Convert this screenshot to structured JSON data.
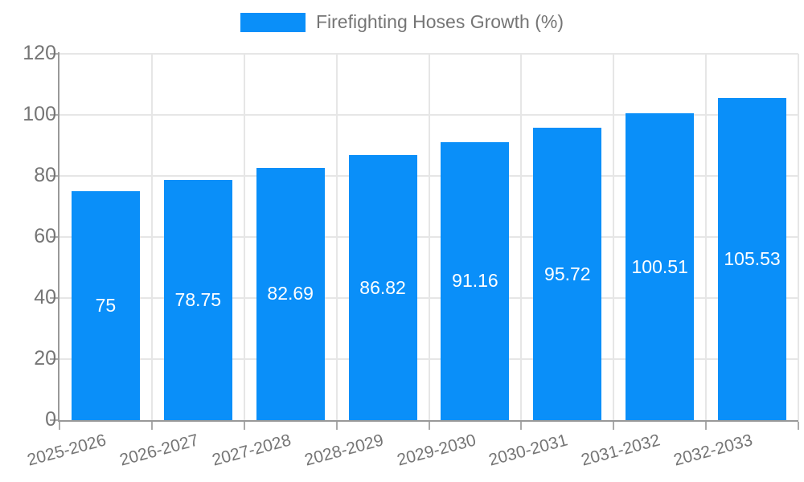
{
  "chart_data": {
    "type": "bar",
    "title": "",
    "legend_position": "top",
    "grid": true,
    "categories": [
      "2025-2026",
      "2026-2027",
      "2027-2028",
      "2028-2029",
      "2029-2030",
      "2030-2031",
      "2031-2032",
      "2032-2033"
    ],
    "series": [
      {
        "name": "Firefighting Hoses Growth (%)",
        "values": [
          75,
          78.75,
          82.69,
          86.82,
          91.16,
          95.72,
          100.51,
          105.53
        ]
      }
    ],
    "value_labels": [
      "75",
      "78.75",
      "82.69",
      "86.82",
      "91.16",
      "95.72",
      "100.51",
      "105.53"
    ],
    "xlabel": "",
    "ylabel": "",
    "ylim": [
      0,
      120
    ],
    "yticks": [
      0,
      20,
      40,
      60,
      80,
      100,
      120
    ]
  },
  "colors": {
    "bar": "#0A8FF9",
    "grid": "#e6e6e6",
    "axis": "#999999",
    "tick": "#aaaaaa",
    "label_text": "#757575",
    "bar_value_text": "#ffffff",
    "background": "#ffffff"
  }
}
